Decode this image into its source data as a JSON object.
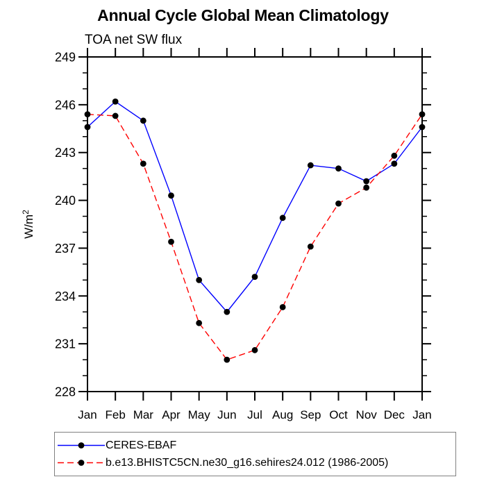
{
  "chart_data": {
    "type": "line",
    "title": "Annual Cycle Global Mean Climatology",
    "subtitle": "TOA net SW flux",
    "ylabel": "W/m²",
    "xlabel": "",
    "categories": [
      "Jan",
      "Feb",
      "Mar",
      "Apr",
      "May",
      "Jun",
      "Jul",
      "Aug",
      "Sep",
      "Oct",
      "Nov",
      "Dec",
      "Jan"
    ],
    "ylim": [
      228,
      249
    ],
    "ytick_major": [
      228,
      231,
      234,
      237,
      240,
      243,
      246,
      249
    ],
    "ytick_minor_step": 1,
    "grid": false,
    "legend_position": "bottom-left-box",
    "axis_color": "#000000",
    "series": [
      {
        "name": "CERES-EBAF",
        "color": "#0000ff",
        "dash": "none",
        "marker": "filled-circle",
        "marker_color": "#000000",
        "values": [
          244.6,
          246.2,
          245.0,
          240.3,
          235.0,
          233.0,
          235.2,
          238.9,
          242.2,
          242.0,
          241.2,
          242.3,
          244.6
        ]
      },
      {
        "name": "b.e13.BHISTC5CN.ne30_g16.sehires24.012 (1986-2005)",
        "color": "#ff0000",
        "dash": "9,5",
        "marker": "filled-circle",
        "marker_color": "#000000",
        "values": [
          245.4,
          245.3,
          242.3,
          237.4,
          232.3,
          230.0,
          230.6,
          233.3,
          237.1,
          239.8,
          240.8,
          242.8,
          245.4
        ]
      }
    ]
  }
}
